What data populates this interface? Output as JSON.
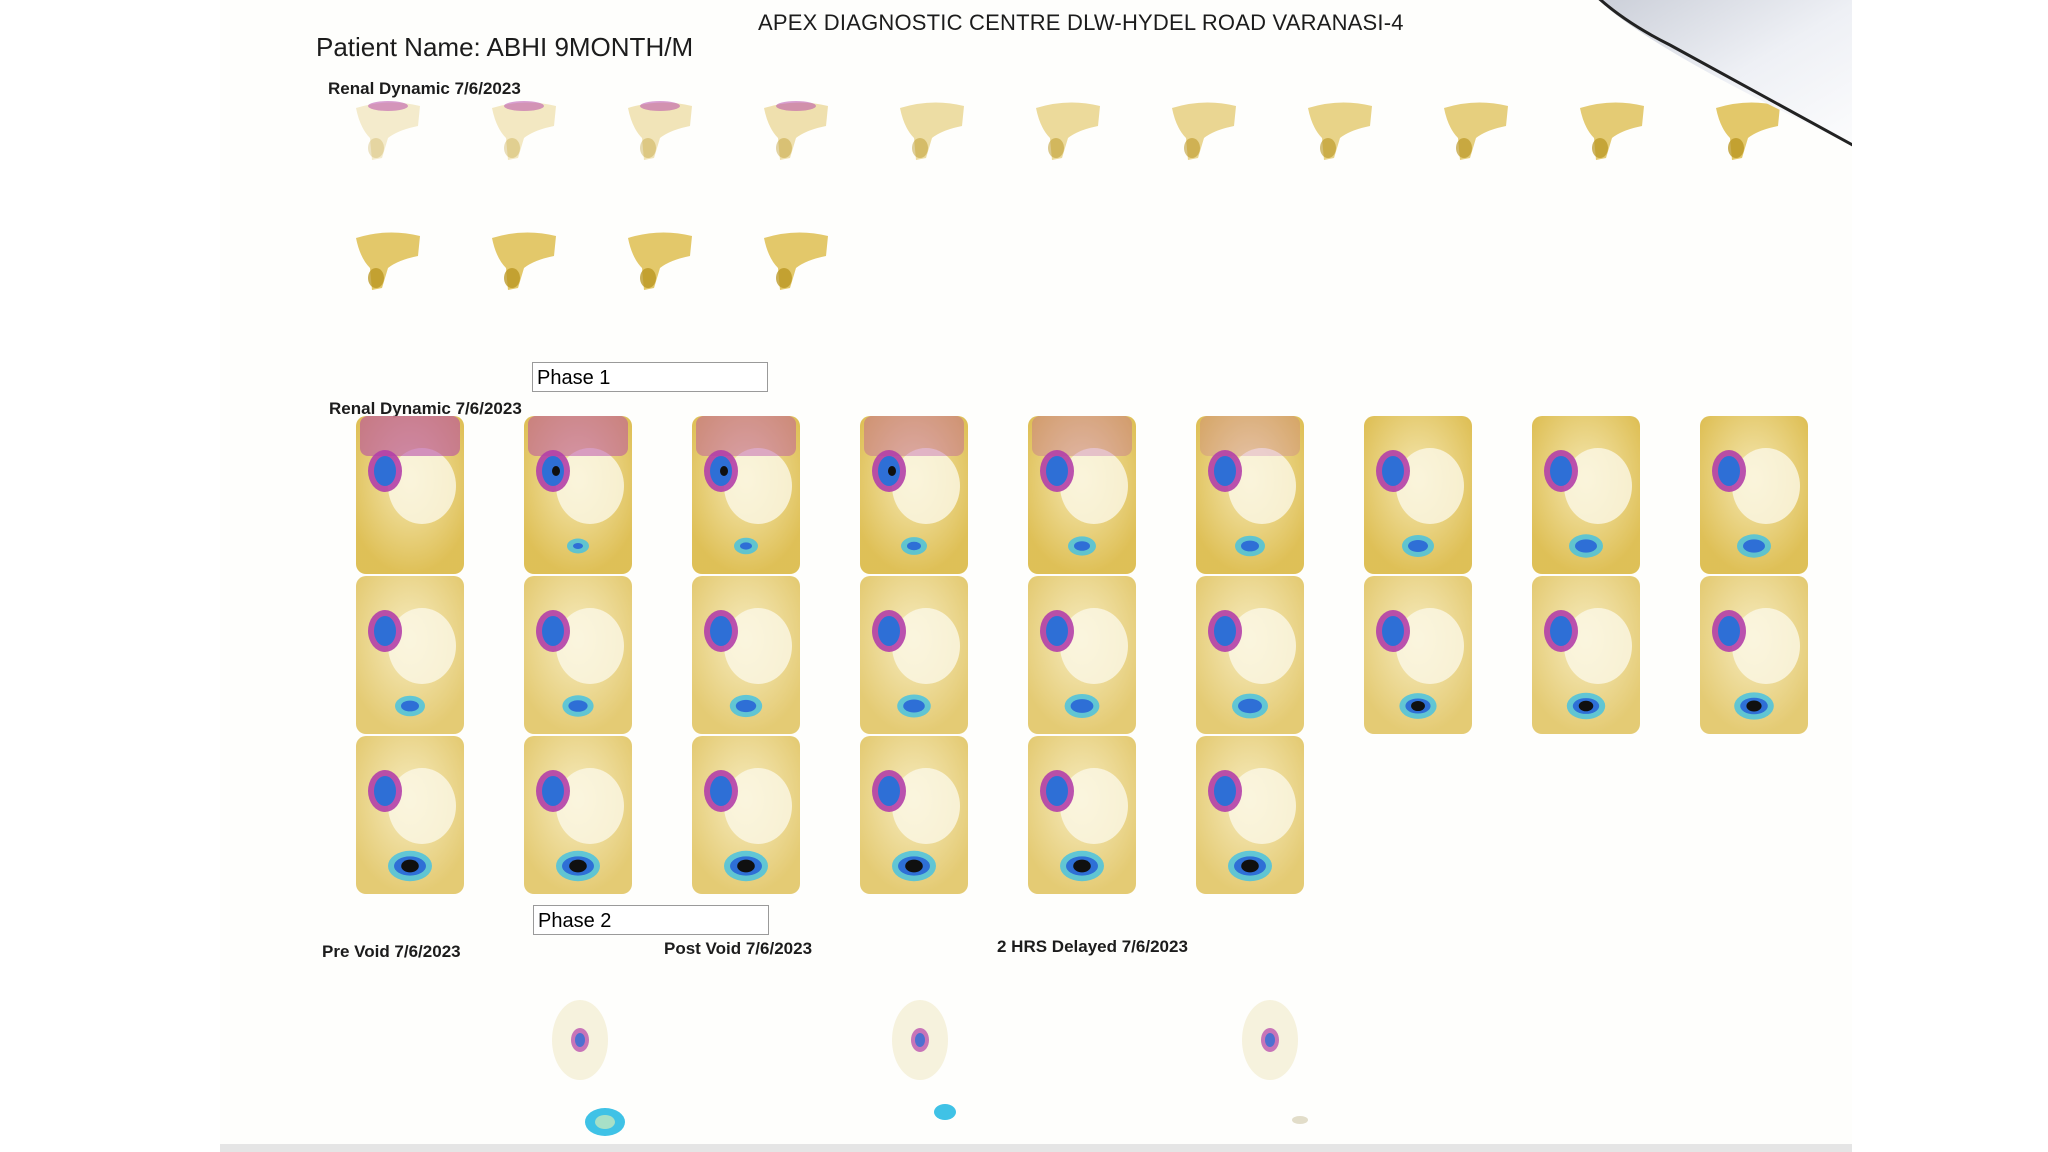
{
  "header": {
    "centre": "APEX DIAGNOSTIC CENTRE DLW-HYDEL ROAD VARANASI-4",
    "patient_label": "Patient Name: ABHI 9MONTH/M"
  },
  "sections": {
    "dynamic1_label": "Renal Dynamic 7/6/2023",
    "phase1_label": "Phase 1",
    "dynamic2_label": "Renal Dynamic 7/6/2023",
    "phase2_label": "Phase 2",
    "pre_void_label": "Pre Void 7/6/2023",
    "post_void_label": "Post Void 7/6/2023",
    "delayed_label": "2 HRS Delayed 7/6/2023"
  },
  "colors": {
    "uptake_yellow": "#d9b53a",
    "uptake_magenta": "#b33fa8",
    "uptake_blue": "#2e6fd6",
    "uptake_cyan": "#3fc2e6",
    "hot_black": "#101010"
  },
  "grids": {
    "flow_frames": 15,
    "dynamic_frames": 24,
    "static_frames": 3
  }
}
